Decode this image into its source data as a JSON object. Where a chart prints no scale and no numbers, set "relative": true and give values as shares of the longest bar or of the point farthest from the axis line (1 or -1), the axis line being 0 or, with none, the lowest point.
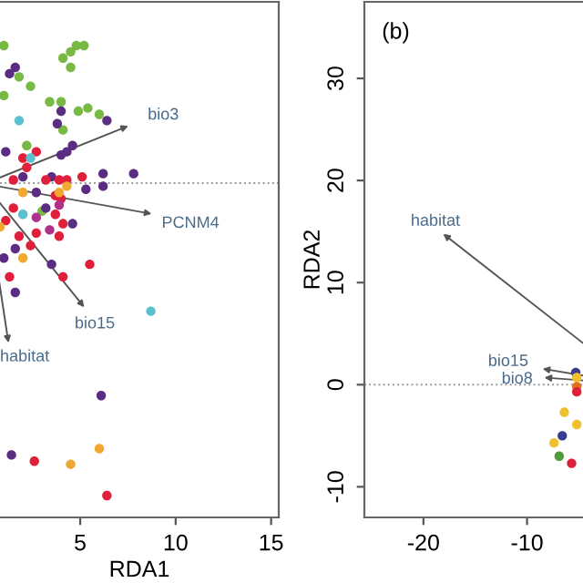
{
  "chart_data": [
    {
      "type": "scatter",
      "relative": true,
      "xlabel": "RDA1",
      "xlim": [
        0.8,
        15.4
      ],
      "xticks": [
        5,
        10,
        15
      ],
      "marker": "circle",
      "grid": false,
      "ref_lines": [
        {
          "axis": "y",
          "value": 0,
          "line_style": "dotted",
          "color": "#999999"
        }
      ],
      "series": [
        {
          "color": "#77b943",
          "x": [
            4.8,
            5.2,
            4.1,
            4.5,
            4.5,
            1.0,
            1.8,
            2.4,
            3.4,
            4.0,
            4.9,
            5.4,
            6.0,
            4.1,
            2.2,
            3.0,
            1.0
          ],
          "values": [
            0.44,
            0.44,
            0.4,
            0.42,
            0.37,
            0.44,
            0.34,
            0.31,
            0.26,
            0.26,
            0.23,
            0.24,
            0.22,
            0.17,
            0.12,
            -0.09,
            0.28
          ]
        },
        {
          "color": "#5b2d82",
          "x": [
            1.6,
            1.3,
            4.0,
            3.8,
            6.4,
            4.6,
            4.3,
            4.0,
            6.2,
            7.8,
            6.2,
            5.3,
            3.5,
            2.0,
            4.6,
            3.5,
            1.6,
            3.2,
            2.7,
            1.0,
            1.1,
            1.6,
            6.1,
            1.4
          ],
          "values": [
            0.37,
            0.35,
            0.23,
            0.19,
            0.2,
            0.12,
            0.1,
            0.09,
            0.03,
            0.03,
            -0.01,
            -0.02,
            0.02,
            0.02,
            -0.13,
            -0.26,
            -0.21,
            -0.08,
            -0.03,
            -0.24,
            0.1,
            -0.35,
            -0.68,
            -0.87
          ]
        },
        {
          "color": "#e0203a",
          "x": [
            2.7,
            2.0,
            2.2,
            5.1,
            4.3,
            3.9,
            3.2,
            4.0,
            3.7,
            3.7,
            4.1,
            3.9,
            2.7,
            1.1,
            1.5,
            2.4,
            1.8,
            5.5,
            4.1,
            1.3,
            1.5,
            2.6,
            6.4
          ],
          "values": [
            0.1,
            0.08,
            0.05,
            0.02,
            0.01,
            0.01,
            0.01,
            -0.05,
            -0.04,
            -0.1,
            -0.13,
            -0.17,
            -0.16,
            -0.12,
            -0.08,
            -0.2,
            -0.17,
            -0.26,
            -0.3,
            -0.3,
            0.01,
            -0.89,
            -1
          ]
        },
        {
          "color": "#f0a830",
          "x": [
            2.0,
            4.3,
            3.9,
            2.0,
            0.8,
            4.5,
            6.0
          ],
          "values": [
            -0.03,
            -0.01,
            -0.03,
            -0.24,
            -0.14,
            -0.9,
            -0.85
          ]
        },
        {
          "color": "#5bc0d0",
          "x": [
            1.8,
            2.4,
            2.0,
            8.7
          ],
          "values": [
            0.2,
            0.08,
            -0.1,
            -0.41
          ]
        },
        {
          "color": "#b0308a",
          "x": [
            2.7,
            3.4,
            3.9
          ],
          "values": [
            -0.11,
            -0.15,
            -0.07
          ]
        }
      ],
      "annotations": [
        "bio3",
        "PCNM4",
        "bio15",
        "habitat"
      ]
    },
    {
      "type": "scatter",
      "ylabel": "RDA2",
      "xlim": [
        -25.7,
        -4.6
      ],
      "xticks": [
        -20,
        -10
      ],
      "ylim": [
        -13,
        37.5
      ],
      "yticks": [
        -10,
        0,
        10,
        20,
        30
      ],
      "marker": "circle",
      "grid": false,
      "ref_lines": [
        {
          "axis": "y",
          "value": 0,
          "line_style": "dotted",
          "color": "#999999"
        }
      ],
      "annotations": [
        "(b)",
        "habitat",
        "bio15",
        "bio8"
      ],
      "series": [
        {
          "color": "#3b3b8f",
          "x": [
            -5.3,
            -6.6
          ],
          "values": [
            1.2,
            -5.0
          ]
        },
        {
          "color": "#f0c030",
          "x": [
            -5.2,
            -6.4,
            -5.2,
            -7.4
          ],
          "values": [
            0.7,
            -2.7,
            -3.9,
            -5.7
          ]
        },
        {
          "color": "#e07020",
          "x": [
            -5.2
          ],
          "values": [
            -0.2
          ]
        },
        {
          "color": "#e0203a",
          "x": [
            -5.2,
            -5.7
          ],
          "values": [
            -0.7,
            -7.7
          ]
        },
        {
          "color": "#4f9a3c",
          "x": [
            -6.9
          ],
          "values": [
            -7.0
          ]
        }
      ]
    }
  ]
}
